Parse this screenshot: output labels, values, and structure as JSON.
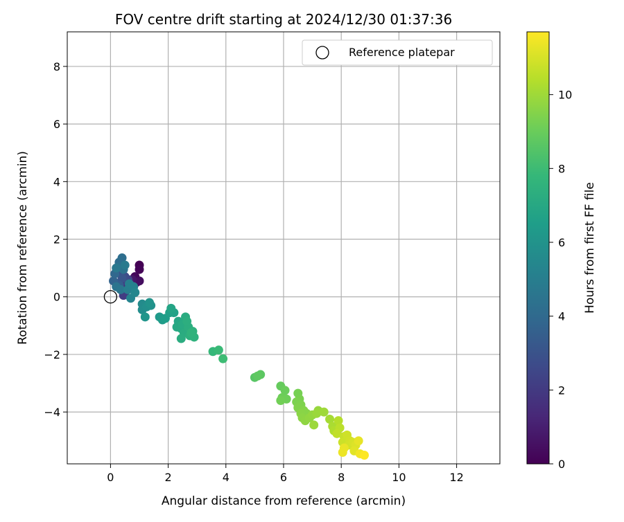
{
  "chart_data": {
    "type": "scatter",
    "title": "FOV centre drift starting at 2024/12/30 01:37:36",
    "xlabel": "Angular distance from reference (arcmin)",
    "ylabel": "Rotation from reference (arcmin)",
    "xlim": [
      -1.5,
      13.5
    ],
    "ylim": [
      -5.8,
      9.2
    ],
    "xticks": [
      0,
      2,
      4,
      6,
      8,
      10,
      12
    ],
    "yticks": [
      -4,
      -2,
      0,
      2,
      4,
      6,
      8
    ],
    "grid": true,
    "legend": {
      "position": "top-right",
      "entries": [
        "Reference platepar"
      ]
    },
    "reference_point": {
      "x": 0,
      "y": 0,
      "label": "Reference platepar"
    },
    "colorbar": {
      "label": "Hours from first FF file",
      "min": 0,
      "max": 11.7,
      "ticks": [
        0,
        2,
        4,
        6,
        8,
        10
      ],
      "colormap": "viridis"
    },
    "points": [
      {
        "x": 1.0,
        "y": 1.1,
        "h": 0.0
      },
      {
        "x": 1.0,
        "y": 0.95,
        "h": 0.1
      },
      {
        "x": 0.85,
        "y": 0.7,
        "h": 0.2
      },
      {
        "x": 1.0,
        "y": 0.55,
        "h": 0.4
      },
      {
        "x": 0.9,
        "y": 0.5,
        "h": 0.5
      },
      {
        "x": 0.75,
        "y": 0.6,
        "h": 0.7
      },
      {
        "x": 0.65,
        "y": 0.55,
        "h": 0.9
      },
      {
        "x": 0.55,
        "y": 0.45,
        "h": 1.1
      },
      {
        "x": 0.7,
        "y": 0.4,
        "h": 1.3
      },
      {
        "x": 0.8,
        "y": 0.35,
        "h": 1.5
      },
      {
        "x": 0.45,
        "y": 0.3,
        "h": 1.7
      },
      {
        "x": 0.5,
        "y": 0.15,
        "h": 1.9
      },
      {
        "x": 0.45,
        "y": 0.05,
        "h": 2.1
      },
      {
        "x": 0.35,
        "y": 0.5,
        "h": 2.3
      },
      {
        "x": 0.6,
        "y": 0.6,
        "h": 2.5
      },
      {
        "x": 0.5,
        "y": 0.7,
        "h": 2.7
      },
      {
        "x": 0.3,
        "y": 0.9,
        "h": 2.9
      },
      {
        "x": 0.4,
        "y": 0.65,
        "h": 3.1
      },
      {
        "x": 0.2,
        "y": 0.45,
        "h": 3.3
      },
      {
        "x": 0.3,
        "y": 0.4,
        "h": 3.5
      },
      {
        "x": 0.1,
        "y": 0.55,
        "h": 3.7
      },
      {
        "x": 0.15,
        "y": 0.8,
        "h": 3.9
      },
      {
        "x": 0.3,
        "y": 1.2,
        "h": 4.1
      },
      {
        "x": 0.4,
        "y": 1.35,
        "h": 4.2
      },
      {
        "x": 0.3,
        "y": 1.05,
        "h": 4.3
      },
      {
        "x": 0.45,
        "y": 0.95,
        "h": 4.4
      },
      {
        "x": 0.2,
        "y": 0.35,
        "h": 4.5
      },
      {
        "x": 0.35,
        "y": 0.25,
        "h": 4.6
      },
      {
        "x": 0.2,
        "y": 1.0,
        "h": 4.7
      },
      {
        "x": 0.5,
        "y": 1.1,
        "h": 4.8
      },
      {
        "x": 0.6,
        "y": 0.25,
        "h": 5.0
      },
      {
        "x": 0.65,
        "y": 0.45,
        "h": 5.1
      },
      {
        "x": 0.8,
        "y": 0.35,
        "h": 5.2
      },
      {
        "x": 0.7,
        "y": -0.05,
        "h": 5.3
      },
      {
        "x": 0.85,
        "y": 0.15,
        "h": 5.4
      },
      {
        "x": 1.1,
        "y": -0.25,
        "h": 5.6
      },
      {
        "x": 1.1,
        "y": -0.45,
        "h": 5.7
      },
      {
        "x": 1.25,
        "y": -0.35,
        "h": 5.8
      },
      {
        "x": 1.4,
        "y": -0.3,
        "h": 5.9
      },
      {
        "x": 1.35,
        "y": -0.2,
        "h": 6.0
      },
      {
        "x": 1.2,
        "y": -0.7,
        "h": 6.1
      },
      {
        "x": 1.7,
        "y": -0.7,
        "h": 6.3
      },
      {
        "x": 1.8,
        "y": -0.8,
        "h": 6.4
      },
      {
        "x": 1.9,
        "y": -0.75,
        "h": 6.5
      },
      {
        "x": 2.05,
        "y": -0.55,
        "h": 6.6
      },
      {
        "x": 2.2,
        "y": -0.55,
        "h": 6.7
      },
      {
        "x": 2.1,
        "y": -0.4,
        "h": 6.8
      },
      {
        "x": 2.35,
        "y": -0.85,
        "h": 6.9
      },
      {
        "x": 2.3,
        "y": -1.05,
        "h": 7.0
      },
      {
        "x": 2.45,
        "y": -1.1,
        "h": 7.05
      },
      {
        "x": 2.5,
        "y": -0.95,
        "h": 7.1
      },
      {
        "x": 2.6,
        "y": -0.7,
        "h": 7.15
      },
      {
        "x": 2.55,
        "y": -1.25,
        "h": 7.2
      },
      {
        "x": 2.45,
        "y": -1.45,
        "h": 7.25
      },
      {
        "x": 2.7,
        "y": -1.05,
        "h": 7.3
      },
      {
        "x": 2.65,
        "y": -0.85,
        "h": 7.35
      },
      {
        "x": 2.75,
        "y": -1.35,
        "h": 7.4
      },
      {
        "x": 2.85,
        "y": -1.2,
        "h": 7.45
      },
      {
        "x": 2.9,
        "y": -1.4,
        "h": 7.5
      },
      {
        "x": 2.8,
        "y": -1.25,
        "h": 7.55
      },
      {
        "x": 3.55,
        "y": -1.9,
        "h": 7.8
      },
      {
        "x": 3.75,
        "y": -1.85,
        "h": 7.9
      },
      {
        "x": 3.9,
        "y": -2.15,
        "h": 8.0
      },
      {
        "x": 5.0,
        "y": -2.8,
        "h": 8.6
      },
      {
        "x": 5.2,
        "y": -2.7,
        "h": 8.7
      },
      {
        "x": 5.1,
        "y": -2.75,
        "h": 8.75
      },
      {
        "x": 5.9,
        "y": -3.1,
        "h": 8.9
      },
      {
        "x": 6.05,
        "y": -3.25,
        "h": 9.0
      },
      {
        "x": 5.95,
        "y": -3.5,
        "h": 9.05
      },
      {
        "x": 6.1,
        "y": -3.55,
        "h": 9.1
      },
      {
        "x": 5.9,
        "y": -3.6,
        "h": 9.15
      },
      {
        "x": 6.5,
        "y": -3.35,
        "h": 9.25
      },
      {
        "x": 6.55,
        "y": -3.55,
        "h": 9.3
      },
      {
        "x": 6.45,
        "y": -3.65,
        "h": 9.35
      },
      {
        "x": 6.6,
        "y": -3.75,
        "h": 9.4
      },
      {
        "x": 6.5,
        "y": -3.85,
        "h": 9.45
      },
      {
        "x": 6.7,
        "y": -3.95,
        "h": 9.5
      },
      {
        "x": 6.8,
        "y": -4.05,
        "h": 9.55
      },
      {
        "x": 6.6,
        "y": -4.05,
        "h": 9.6
      },
      {
        "x": 6.65,
        "y": -4.2,
        "h": 9.65
      },
      {
        "x": 6.75,
        "y": -4.3,
        "h": 9.7
      },
      {
        "x": 6.9,
        "y": -4.2,
        "h": 9.75
      },
      {
        "x": 7.0,
        "y": -4.1,
        "h": 9.8
      },
      {
        "x": 7.2,
        "y": -3.95,
        "h": 9.85
      },
      {
        "x": 7.15,
        "y": -4.05,
        "h": 9.9
      },
      {
        "x": 7.05,
        "y": -4.45,
        "h": 9.95
      },
      {
        "x": 7.4,
        "y": -4.0,
        "h": 10.0
      },
      {
        "x": 7.6,
        "y": -4.25,
        "h": 10.1
      },
      {
        "x": 7.7,
        "y": -4.5,
        "h": 10.2
      },
      {
        "x": 7.75,
        "y": -4.65,
        "h": 10.3
      },
      {
        "x": 7.9,
        "y": -4.3,
        "h": 10.4
      },
      {
        "x": 7.95,
        "y": -4.55,
        "h": 10.5
      },
      {
        "x": 7.85,
        "y": -4.75,
        "h": 10.6
      },
      {
        "x": 8.1,
        "y": -4.85,
        "h": 10.7
      },
      {
        "x": 8.05,
        "y": -5.05,
        "h": 10.8
      },
      {
        "x": 8.2,
        "y": -4.8,
        "h": 10.85
      },
      {
        "x": 8.3,
        "y": -5.0,
        "h": 10.9
      },
      {
        "x": 8.25,
        "y": -5.15,
        "h": 10.95
      },
      {
        "x": 8.4,
        "y": -5.05,
        "h": 11.0
      },
      {
        "x": 8.5,
        "y": -5.15,
        "h": 11.1
      },
      {
        "x": 8.45,
        "y": -5.35,
        "h": 11.2
      },
      {
        "x": 8.6,
        "y": -5.0,
        "h": 11.3
      },
      {
        "x": 8.1,
        "y": -5.25,
        "h": 11.35
      },
      {
        "x": 8.05,
        "y": -5.4,
        "h": 11.4
      },
      {
        "x": 8.65,
        "y": -5.45,
        "h": 11.5
      },
      {
        "x": 8.8,
        "y": -5.5,
        "h": 11.7
      }
    ]
  }
}
